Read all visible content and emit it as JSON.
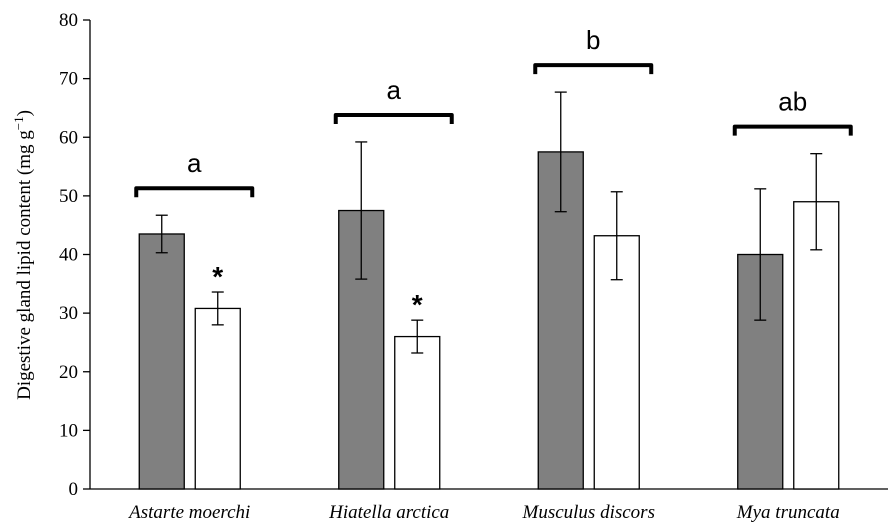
{
  "chart_data": {
    "type": "bar",
    "ylabel_main": "Digestive  gland lipid content (mg g",
    "ylabel_sup": "−1",
    "ylabel_close": ")",
    "ylim": [
      0,
      80
    ],
    "yticks": [
      0,
      10,
      20,
      30,
      40,
      50,
      60,
      70,
      80
    ],
    "categories": [
      "Astarte moerchi",
      "Hiatella arctica",
      "Musculus discors",
      "Mya truncata"
    ],
    "series": [
      {
        "color": "#808080",
        "values": [
          43.5,
          47.5,
          57.5,
          40.0
        ],
        "errors": [
          3.2,
          11.7,
          10.2,
          11.2
        ]
      },
      {
        "color": "#ffffff",
        "values": [
          30.8,
          26.0,
          43.2,
          49.0
        ],
        "errors": [
          2.8,
          2.8,
          7.5,
          8.2
        ]
      }
    ],
    "group_letters": [
      "a",
      "a",
      "b",
      "ab"
    ],
    "significance": [
      "*",
      "*",
      "",
      ""
    ]
  }
}
